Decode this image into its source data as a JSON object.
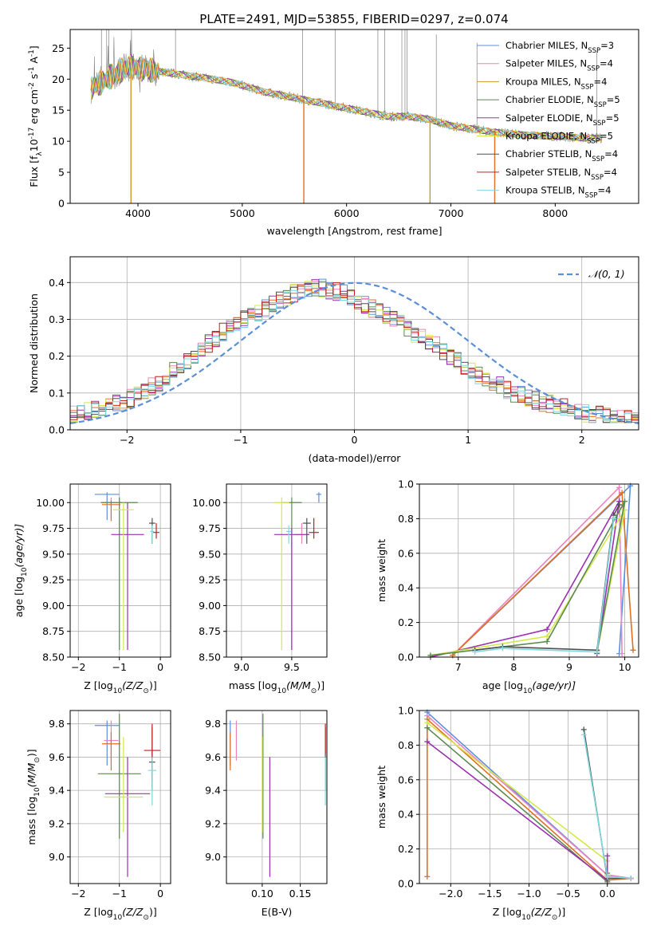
{
  "figure": {
    "title": "PLATE=2491, MJD=53855, FIBERID=0297, z=0.074"
  },
  "palette": {
    "chabrier_miles": "#5b8fe0",
    "salpeter_miles": "#ee82c0",
    "kroupa_miles": "#c89a28",
    "chabrier_elodie": "#5a8a50",
    "salpeter_elodie": "#9b30b0",
    "kroupa_elodie": "#d4e84a",
    "chabrier_stelib": "#505050",
    "salpeter_stelib": "#c02020",
    "kroupa_stelib": "#80d8e0",
    "orange_fit": "#e07020",
    "data_grey": "#808080",
    "normal_curve": "#5b8fd8",
    "grid": "#b0b0b0"
  },
  "chart_data": [
    {
      "id": "spectrum",
      "type": "line",
      "xlabel": "wavelength [Angstrom, rest frame]",
      "ylabel_parts": [
        "Flux [f",
        "λ",
        "10",
        "-17",
        " erg cm",
        "-2",
        " s",
        "-1",
        " A",
        "-1",
        "]"
      ],
      "xlim": [
        3350,
        8800
      ],
      "ylim": [
        0,
        28
      ],
      "xticks": [
        4000,
        5000,
        6000,
        7000,
        8000
      ],
      "yticks": [
        0,
        5,
        10,
        15,
        20,
        25
      ],
      "legend_position": "top-right",
      "legend": [
        {
          "label": "Chabrier MILES, N",
          "sub": "SSP",
          "tail": "=3",
          "color_key": "chabrier_miles"
        },
        {
          "label": "Salpeter MILES, N",
          "sub": "SSP",
          "tail": "=4",
          "color_key": "salpeter_miles"
        },
        {
          "label": "Kroupa MILES, N",
          "sub": "SSP",
          "tail": "=4",
          "color_key": "kroupa_miles"
        },
        {
          "label": "Chabrier ELODIE, N",
          "sub": "SSP",
          "tail": "=5",
          "color_key": "chabrier_elodie"
        },
        {
          "label": "Salpeter ELODIE, N",
          "sub": "SSP",
          "tail": "=5",
          "color_key": "salpeter_elodie"
        },
        {
          "label": "Kroupa ELODIE, N",
          "sub": "SSP",
          "tail": "=5",
          "color_key": "kroupa_elodie"
        },
        {
          "label": "Chabrier STELIB, N",
          "sub": "SSP",
          "tail": "=4",
          "color_key": "chabrier_stelib"
        },
        {
          "label": "Salpeter STELIB, N",
          "sub": "SSP",
          "tail": "=4",
          "color_key": "salpeter_stelib"
        },
        {
          "label": "Kroupa STELIB, N",
          "sub": "SSP",
          "tail": "=4",
          "color_key": "kroupa_stelib"
        }
      ],
      "continuum": [
        [
          3550,
          18.5
        ],
        [
          3700,
          20
        ],
        [
          3900,
          22
        ],
        [
          4100,
          21.5
        ],
        [
          4300,
          21
        ],
        [
          4600,
          20.3
        ],
        [
          4900,
          19.5
        ],
        [
          5200,
          18
        ],
        [
          5500,
          17
        ],
        [
          5800,
          16
        ],
        [
          6100,
          15
        ],
        [
          6400,
          14
        ],
        [
          6600,
          14
        ],
        [
          6800,
          13.5
        ],
        [
          7000,
          12.5
        ],
        [
          7200,
          12
        ],
        [
          7400,
          11.5
        ],
        [
          7700,
          11
        ],
        [
          8000,
          10.8
        ],
        [
          8300,
          10.5
        ],
        [
          8450,
          10.5
        ]
      ],
      "absorption_features": [
        [
          3933,
          0
        ],
        [
          5590,
          0
        ],
        [
          6800,
          0
        ],
        [
          7420,
          0
        ]
      ]
    },
    {
      "id": "residuals",
      "type": "histogram",
      "xlabel": "(data-model)/error",
      "ylabel": "Normed distribution",
      "xlim": [
        -2.5,
        2.5
      ],
      "ylim": [
        0,
        0.47
      ],
      "xticks": [
        -2,
        -1,
        0,
        1,
        2
      ],
      "yticks": [
        0.0,
        0.1,
        0.2,
        0.3,
        0.4
      ],
      "bin_width": 0.1,
      "legend": [
        {
          "label": "𝒩(0, 1)",
          "style": "dashed",
          "color_key": "normal_curve"
        }
      ],
      "legend_position": "top-right",
      "base_hist": [
        0.04,
        0.045,
        0.05,
        0.055,
        0.06,
        0.065,
        0.07,
        0.075,
        0.085,
        0.095,
        0.11,
        0.12,
        0.13,
        0.145,
        0.16,
        0.175,
        0.19,
        0.205,
        0.22,
        0.235,
        0.25,
        0.265,
        0.28,
        0.29,
        0.3,
        0.31,
        0.32,
        0.33,
        0.34,
        0.35,
        0.36,
        0.37,
        0.375,
        0.38,
        0.385,
        0.385,
        0.38,
        0.375,
        0.37,
        0.36,
        0.35,
        0.34,
        0.33,
        0.32,
        0.31,
        0.3,
        0.29,
        0.27,
        0.26,
        0.25,
        0.24,
        0.23,
        0.21,
        0.2,
        0.19,
        0.17,
        0.16,
        0.15,
        0.14,
        0.13,
        0.12,
        0.11,
        0.1,
        0.095,
        0.085,
        0.08,
        0.075,
        0.07,
        0.065,
        0.06,
        0.055,
        0.05,
        0.045,
        0.04,
        0.04,
        0.035,
        0.035,
        0.03,
        0.03,
        0.03
      ]
    },
    {
      "id": "age-vs-Z",
      "type": "scatter",
      "xlabel_parts": [
        "Z [log",
        "10",
        "(Z/Z",
        "⊙",
        ")]"
      ],
      "ylabel_parts": [
        "age  [log",
        "10",
        "(age/yr)]"
      ],
      "xlim": [
        -2.2,
        0.25
      ],
      "ylim": [
        8.5,
        10.18
      ],
      "xticks": [
        -2,
        -1,
        0
      ],
      "yticks": [
        8.5,
        8.75,
        9.0,
        9.25,
        9.5,
        9.75,
        10.0
      ],
      "points": [
        {
          "x": -1.3,
          "y": 10.08,
          "xerr": 0.6,
          "ylo": 9.83,
          "yhi": 10.1,
          "color_key": "chabrier_miles"
        },
        {
          "x": -1.2,
          "y": 10.0,
          "xerr": 0.5,
          "ylo": 9.85,
          "yhi": 10.05,
          "color_key": "salpeter_miles"
        },
        {
          "x": -1.2,
          "y": 9.98,
          "xerr": 0.45,
          "ylo": 9.82,
          "yhi": 10.02,
          "color_key": "orange_fit"
        },
        {
          "x": -1.0,
          "y": 10.0,
          "xerr": 0.9,
          "ylo": 8.57,
          "yhi": 10.05,
          "color_key": "chabrier_elodie"
        },
        {
          "x": -0.8,
          "y": 9.69,
          "xerr": 0.8,
          "ylo": 8.57,
          "yhi": 10.0,
          "color_key": "salpeter_elodie"
        },
        {
          "x": -0.9,
          "y": 9.93,
          "xerr": 0.5,
          "ylo": 8.57,
          "yhi": 10.0,
          "color_key": "kroupa_elodie"
        },
        {
          "x": -0.2,
          "y": 9.8,
          "xerr": 0.15,
          "ylo": 9.6,
          "yhi": 9.85,
          "color_key": "chabrier_stelib"
        },
        {
          "x": -0.1,
          "y": 9.71,
          "xerr": 0.15,
          "ylo": 9.65,
          "yhi": 9.8,
          "color_key": "salpeter_stelib"
        },
        {
          "x": -0.2,
          "y": 9.72,
          "xerr": 0.1,
          "ylo": 9.6,
          "yhi": 9.78,
          "color_key": "kroupa_stelib"
        }
      ]
    },
    {
      "id": "age-vs-mass",
      "type": "scatter",
      "xlabel_parts": [
        "mass [log",
        "10",
        "(M/M",
        "⊙",
        ")]"
      ],
      "xlim": [
        8.85,
        9.85
      ],
      "ylim": [
        8.5,
        10.18
      ],
      "xticks": [
        9.0,
        9.5
      ],
      "yticks": [
        8.5,
        8.75,
        9.0,
        9.25,
        9.5,
        9.75,
        10.0
      ],
      "points": [
        {
          "x": 9.77,
          "y": 10.08,
          "xerr": 0.05,
          "ylo": 10.0,
          "yhi": 10.1,
          "color_key": "chabrier_miles"
        },
        {
          "x": 9.6,
          "y": 9.69,
          "xerr": 0.15,
          "ylo": 9.6,
          "yhi": 9.8,
          "color_key": "salpeter_miles"
        },
        {
          "x": 9.5,
          "y": 10.0,
          "xerr": 0.2,
          "ylo": 8.57,
          "yhi": 10.05,
          "color_key": "chabrier_elodie"
        },
        {
          "x": 9.4,
          "y": 10.0,
          "xerr": 0.15,
          "ylo": 8.57,
          "yhi": 10.05,
          "color_key": "kroupa_elodie"
        },
        {
          "x": 9.5,
          "y": 9.69,
          "xerr": 0.35,
          "ylo": 8.57,
          "yhi": 9.75,
          "color_key": "salpeter_elodie"
        },
        {
          "x": 9.65,
          "y": 9.8,
          "xerr": 0.08,
          "ylo": 9.6,
          "yhi": 9.85,
          "color_key": "chabrier_stelib"
        },
        {
          "x": 9.72,
          "y": 9.71,
          "xerr": 0.1,
          "ylo": 9.65,
          "yhi": 9.85,
          "color_key": "salpeter_stelib"
        },
        {
          "x": 9.47,
          "y": 9.72,
          "xerr": 0.05,
          "ylo": 9.6,
          "yhi": 9.78,
          "color_key": "kroupa_stelib"
        }
      ]
    },
    {
      "id": "massweight-vs-age",
      "type": "line",
      "xlabel_parts": [
        "age  [log",
        "10",
        "(age/yr)]"
      ],
      "ylabel": "mass weight",
      "xlim": [
        6.3,
        10.25
      ],
      "ylim": [
        0.0,
        1.0
      ],
      "xticks": [
        7,
        8,
        9,
        10
      ],
      "yticks": [
        0.0,
        0.2,
        0.4,
        0.6,
        0.8,
        1.0
      ],
      "series": [
        {
          "color_key": "chabrier_miles",
          "pts": [
            [
              6.9,
              0.01
            ],
            [
              10.1,
              0.99
            ],
            [
              9.9,
              0.02
            ]
          ]
        },
        {
          "color_key": "salpeter_miles",
          "pts": [
            [
              6.9,
              0.01
            ],
            [
              9.9,
              0.98
            ],
            [
              9.95,
              0.02
            ]
          ]
        },
        {
          "color_key": "orange_fit",
          "pts": [
            [
              6.9,
              0.01
            ],
            [
              9.95,
              0.95
            ],
            [
              10.15,
              0.04
            ]
          ]
        },
        {
          "color_key": "salpeter_elodie",
          "pts": [
            [
              6.5,
              0.0
            ],
            [
              8.6,
              0.16
            ],
            [
              9.9,
              0.9
            ],
            [
              9.5,
              0.02
            ]
          ]
        },
        {
          "color_key": "kroupa_elodie",
          "pts": [
            [
              6.5,
              0.01
            ],
            [
              8.6,
              0.12
            ],
            [
              10.0,
              0.85
            ],
            [
              9.5,
              0.03
            ]
          ]
        },
        {
          "color_key": "chabrier_elodie",
          "pts": [
            [
              6.5,
              0.01
            ],
            [
              8.6,
              0.09
            ],
            [
              10.0,
              0.9
            ],
            [
              9.5,
              0.03
            ]
          ]
        },
        {
          "color_key": "chabrier_stelib",
          "pts": [
            [
              7.3,
              0.04
            ],
            [
              7.8,
              0.06
            ],
            [
              9.5,
              0.04
            ],
            [
              9.8,
              0.82
            ],
            [
              9.9,
              0.88
            ]
          ]
        },
        {
          "color_key": "kroupa_stelib",
          "pts": [
            [
              7.3,
              0.03
            ],
            [
              7.8,
              0.05
            ],
            [
              9.5,
              0.03
            ],
            [
              9.8,
              0.8
            ]
          ]
        }
      ]
    },
    {
      "id": "mass-vs-Z",
      "type": "scatter",
      "xlabel_parts": [
        "Z [log",
        "10",
        "(Z/Z",
        "⊙",
        ")]"
      ],
      "ylabel_parts": [
        "mass [log",
        "10",
        "(M/M",
        "⊙",
        ")]"
      ],
      "xlim": [
        -2.2,
        0.25
      ],
      "ylim": [
        8.84,
        9.88
      ],
      "xticks": [
        -2,
        -1,
        0
      ],
      "yticks": [
        9.0,
        9.2,
        9.4,
        9.6,
        9.8
      ],
      "points": [
        {
          "x": -1.3,
          "y": 9.79,
          "xerr": 0.6,
          "ylo": 9.55,
          "yhi": 9.82,
          "color_key": "chabrier_miles"
        },
        {
          "x": -1.2,
          "y": 9.7,
          "xerr": 0.35,
          "ylo": 9.58,
          "yhi": 9.82,
          "color_key": "salpeter_miles"
        },
        {
          "x": -1.2,
          "y": 9.68,
          "xerr": 0.45,
          "ylo": 9.52,
          "yhi": 9.75,
          "color_key": "orange_fit"
        },
        {
          "x": -1.0,
          "y": 9.5,
          "xerr": 1.05,
          "ylo": 9.11,
          "yhi": 9.86,
          "color_key": "chabrier_elodie"
        },
        {
          "x": -0.8,
          "y": 9.38,
          "xerr": 1.1,
          "ylo": 8.88,
          "yhi": 9.6,
          "color_key": "salpeter_elodie"
        },
        {
          "x": -0.9,
          "y": 9.36,
          "xerr": 0.95,
          "ylo": 9.15,
          "yhi": 9.72,
          "color_key": "kroupa_elodie"
        },
        {
          "x": -0.2,
          "y": 9.57,
          "xerr": 0.15,
          "ylo": 9.4,
          "yhi": 9.78,
          "color_key": "chabrier_stelib"
        },
        {
          "x": -0.2,
          "y": 9.64,
          "xerr": 0.4,
          "ylo": 9.45,
          "yhi": 9.8,
          "color_key": "salpeter_stelib"
        },
        {
          "x": -0.2,
          "y": 9.52,
          "xerr": 0.2,
          "ylo": 9.31,
          "yhi": 9.6,
          "color_key": "kroupa_stelib"
        }
      ]
    },
    {
      "id": "mass-vs-EBV",
      "type": "scatter",
      "xlabel": "E(B-V)",
      "xlim": [
        0.053,
        0.185
      ],
      "ylim": [
        8.84,
        9.88
      ],
      "xticks": [
        0.1,
        0.15
      ],
      "yticks": [
        9.0,
        9.2,
        9.4,
        9.6,
        9.8
      ],
      "tick_labels_x": [
        "0.10",
        "0.15"
      ],
      "points": [
        {
          "x": 0.058,
          "ylo": 9.55,
          "yhi": 9.82,
          "color_key": "chabrier_miles"
        },
        {
          "x": 0.066,
          "ylo": 9.58,
          "yhi": 9.82,
          "color_key": "salpeter_miles"
        },
        {
          "x": 0.058,
          "ylo": 9.52,
          "yhi": 9.75,
          "color_key": "orange_fit"
        },
        {
          "x": 0.101,
          "ylo": 9.11,
          "yhi": 9.86,
          "color_key": "chabrier_elodie"
        },
        {
          "x": 0.11,
          "ylo": 8.88,
          "yhi": 9.6,
          "color_key": "salpeter_elodie"
        },
        {
          "x": 0.1,
          "ylo": 9.15,
          "yhi": 9.72,
          "color_key": "kroupa_elodie"
        },
        {
          "x": 0.183,
          "ylo": 9.4,
          "yhi": 9.78,
          "color_key": "chabrier_stelib"
        },
        {
          "x": 0.183,
          "ylo": 9.62,
          "yhi": 9.8,
          "color_key": "salpeter_stelib"
        },
        {
          "x": 0.183,
          "ylo": 9.31,
          "yhi": 9.6,
          "color_key": "kroupa_stelib"
        }
      ]
    },
    {
      "id": "massweight-vs-Z",
      "type": "line",
      "xlabel_parts": [
        "Z [log",
        "10",
        "(Z/Z",
        "⊙",
        ")]"
      ],
      "ylabel": "mass weight",
      "xlim": [
        -2.4,
        0.4
      ],
      "ylim": [
        0.0,
        1.0
      ],
      "xticks": [
        -2.0,
        -1.5,
        -1.0,
        -0.5,
        0.0
      ],
      "tick_labels_x": [
        "−2.0",
        "−1.5",
        "−1.0",
        "−0.5",
        "0.0"
      ],
      "yticks": [
        0.0,
        0.2,
        0.4,
        0.6,
        0.8,
        1.0
      ],
      "series": [
        {
          "color_key": "chabrier_miles",
          "pts": [
            [
              -2.3,
              0.99
            ],
            [
              0.0,
              0.05
            ],
            [
              0.3,
              0.03
            ]
          ]
        },
        {
          "color_key": "salpeter_miles",
          "pts": [
            [
              -2.3,
              0.97
            ],
            [
              0.0,
              0.05
            ],
            [
              0.3,
              0.03
            ]
          ]
        },
        {
          "color_key": "orange_fit",
          "pts": [
            [
              -2.3,
              0.04
            ],
            [
              -2.3,
              0.95
            ],
            [
              0.0,
              0.02
            ],
            [
              0.3,
              0.03
            ]
          ]
        },
        {
          "color_key": "kroupa_elodie",
          "pts": [
            [
              -2.3,
              0.93
            ],
            [
              0.0,
              0.13
            ],
            [
              0.0,
              0.05
            ]
          ]
        },
        {
          "color_key": "chabrier_elodie",
          "pts": [
            [
              -2.3,
              0.9
            ],
            [
              0.0,
              0.01
            ],
            [
              0.0,
              0.06
            ]
          ]
        },
        {
          "color_key": "salpeter_elodie",
          "pts": [
            [
              -2.3,
              0.82
            ],
            [
              0.0,
              0.02
            ],
            [
              0.0,
              0.16
            ]
          ]
        },
        {
          "color_key": "chabrier_stelib",
          "pts": [
            [
              -0.3,
              0.89
            ],
            [
              0.0,
              0.03
            ],
            [
              0.3,
              0.03
            ]
          ]
        },
        {
          "color_key": "kroupa_stelib",
          "pts": [
            [
              -0.3,
              0.86
            ],
            [
              0.0,
              0.04
            ],
            [
              0.3,
              0.03
            ]
          ]
        }
      ]
    }
  ]
}
